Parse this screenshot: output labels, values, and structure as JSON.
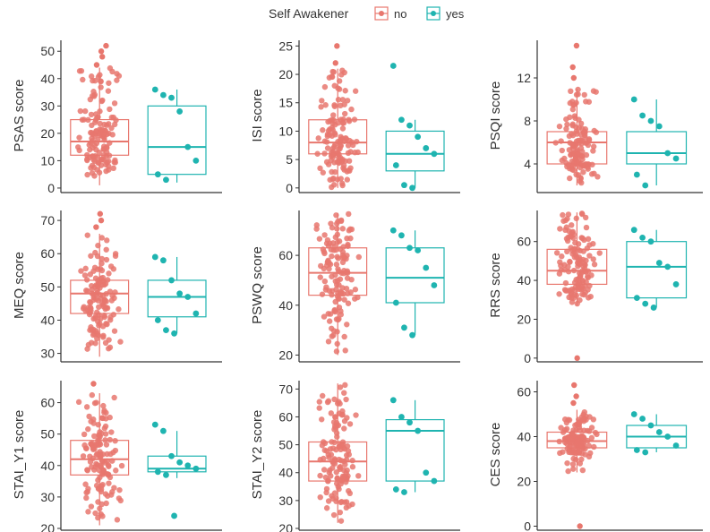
{
  "legend": {
    "title": "Self Awakener",
    "entries": [
      {
        "label": "no",
        "color": "#E8776E"
      },
      {
        "label": "yes",
        "color": "#1FB4B0"
      }
    ]
  },
  "chart_data": [
    {
      "type": "box",
      "ylabel": "PSAS score",
      "ylim": [
        -1,
        54
      ],
      "ticks": [
        0,
        10,
        20,
        30,
        40,
        50
      ],
      "boxes": [
        {
          "group": "no",
          "whisker_low": 1,
          "q1": 12,
          "median": 17,
          "q3": 25,
          "whisker_high": 44,
          "outliers": [
            45,
            48,
            50,
            52
          ]
        },
        {
          "group": "yes",
          "whisker_low": 2,
          "q1": 5,
          "median": 15,
          "q3": 30,
          "whisker_high": 36,
          "outliers": []
        }
      ],
      "points_yes": [
        36,
        34,
        33,
        28,
        15,
        10,
        5,
        3
      ]
    },
    {
      "type": "box",
      "ylabel": "ISI score",
      "ylim": [
        -0.5,
        26
      ],
      "ticks": [
        0,
        5,
        10,
        15,
        20,
        25
      ],
      "boxes": [
        {
          "group": "no",
          "whisker_low": 0,
          "q1": 6,
          "median": 8,
          "q3": 12,
          "whisker_high": 21,
          "outliers": [
            22,
            25
          ]
        },
        {
          "group": "yes",
          "whisker_low": 0,
          "q1": 3,
          "median": 6,
          "q3": 10,
          "whisker_high": 12,
          "outliers": [
            21.5
          ]
        }
      ],
      "points_yes": [
        21.5,
        12,
        11,
        9,
        7,
        6,
        4,
        0.5,
        0
      ]
    },
    {
      "type": "box",
      "ylabel": "PSQI score",
      "ylim": [
        1.5,
        15.5
      ],
      "ticks": [
        4,
        8,
        12
      ],
      "boxes": [
        {
          "group": "no",
          "whisker_low": 2,
          "q1": 4,
          "median": 6,
          "q3": 7,
          "whisker_high": 11,
          "outliers": [
            12,
            13,
            15
          ]
        },
        {
          "group": "yes",
          "whisker_low": 2,
          "q1": 4,
          "median": 5,
          "q3": 7,
          "whisker_high": 10,
          "outliers": []
        }
      ],
      "points_yes": [
        10,
        8.5,
        8,
        7.5,
        5,
        4.5,
        3,
        2
      ]
    },
    {
      "type": "box",
      "ylabel": "MEQ score",
      "ylim": [
        28,
        73
      ],
      "ticks": [
        30,
        40,
        50,
        60,
        70
      ],
      "boxes": [
        {
          "group": "no",
          "whisker_low": 29,
          "q1": 42,
          "median": 48,
          "q3": 52,
          "whisker_high": 66,
          "outliers": [
            68,
            70,
            72
          ]
        },
        {
          "group": "yes",
          "whisker_low": 36,
          "q1": 41,
          "median": 47,
          "q3": 52,
          "whisker_high": 59,
          "outliers": []
        }
      ],
      "points_yes": [
        59,
        58,
        52,
        48,
        47,
        42,
        40,
        37,
        36
      ]
    },
    {
      "type": "box",
      "ylabel": "PSWQ score",
      "ylim": [
        18,
        78
      ],
      "ticks": [
        20,
        40,
        60
      ],
      "boxes": [
        {
          "group": "no",
          "whisker_low": 20,
          "q1": 44,
          "median": 53,
          "q3": 63,
          "whisker_high": 77,
          "outliers": []
        },
        {
          "group": "yes",
          "whisker_low": 28,
          "q1": 41,
          "median": 51,
          "q3": 63,
          "whisker_high": 70,
          "outliers": []
        }
      ],
      "points_yes": [
        70,
        68,
        63,
        62,
        55,
        48,
        41,
        31,
        28
      ]
    },
    {
      "type": "box",
      "ylabel": "RRS score",
      "ylim": [
        -1,
        76
      ],
      "ticks": [
        0,
        20,
        40,
        60
      ],
      "boxes": [
        {
          "group": "no",
          "whisker_low": 27,
          "q1": 38,
          "median": 45,
          "q3": 56,
          "whisker_high": 75,
          "outliers": [
            0
          ]
        },
        {
          "group": "yes",
          "whisker_low": 26,
          "q1": 31,
          "median": 47,
          "q3": 60,
          "whisker_high": 66,
          "outliers": []
        }
      ],
      "points_yes": [
        66,
        62,
        60,
        49,
        47,
        38,
        31,
        28,
        26
      ]
    },
    {
      "type": "box",
      "ylabel": "STAI_Y1 score",
      "ylim": [
        20,
        67
      ],
      "ticks": [
        20,
        30,
        40,
        50,
        60
      ],
      "boxes": [
        {
          "group": "no",
          "whisker_low": 21,
          "q1": 37,
          "median": 42,
          "q3": 48,
          "whisker_high": 63,
          "outliers": [
            66
          ]
        },
        {
          "group": "yes",
          "whisker_low": 36,
          "q1": 38,
          "median": 39,
          "q3": 43,
          "whisker_high": 51,
          "outliers": [
            53,
            24
          ]
        }
      ],
      "points_yes": [
        53,
        51,
        43,
        41,
        40,
        39,
        38,
        37,
        24
      ]
    },
    {
      "type": "box",
      "ylabel": "STAI_Y2 score",
      "ylim": [
        20,
        73
      ],
      "ticks": [
        20,
        30,
        40,
        50,
        60,
        70
      ],
      "boxes": [
        {
          "group": "no",
          "whisker_low": 22,
          "q1": 37,
          "median": 44,
          "q3": 51,
          "whisker_high": 72,
          "outliers": []
        },
        {
          "group": "yes",
          "whisker_low": 33,
          "q1": 37,
          "median": 55,
          "q3": 59,
          "whisker_high": 66,
          "outliers": []
        }
      ],
      "points_yes": [
        66,
        60,
        58,
        55,
        40,
        37,
        34,
        33
      ]
    },
    {
      "type": "box",
      "ylabel": "CES score",
      "ylim": [
        -1,
        65
      ],
      "ticks": [
        0,
        20,
        40,
        60
      ],
      "boxes": [
        {
          "group": "no",
          "whisker_low": 24,
          "q1": 35,
          "median": 38,
          "q3": 42,
          "whisker_high": 52,
          "outliers": [
            55,
            58,
            63,
            0
          ]
        },
        {
          "group": "yes",
          "whisker_low": 33,
          "q1": 35,
          "median": 40,
          "q3": 45,
          "whisker_high": 50,
          "outliers": []
        }
      ],
      "points_yes": [
        50,
        48,
        45,
        42,
        40,
        36,
        34,
        33
      ]
    }
  ]
}
